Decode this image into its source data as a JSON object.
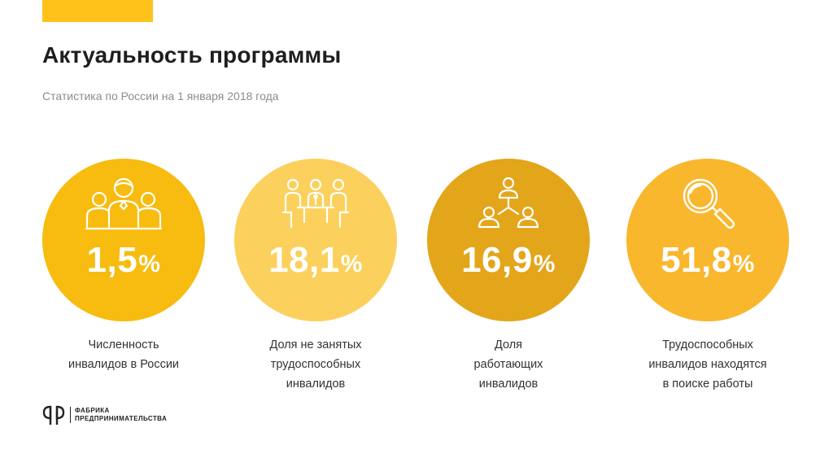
{
  "colors": {
    "accent_bar": "#ffc21a",
    "circle_1": "#f7bc0f",
    "circle_2": "#fbd05c",
    "circle_3": "#e3a51a",
    "circle_4": "#f9b72d"
  },
  "header": {
    "title": "Актуальность программы",
    "subtitle": "Статистика по России на 1 января 2018 года"
  },
  "stats": [
    {
      "icon": "people-group-icon",
      "value": "1,5",
      "unit": "%",
      "label_lines": [
        "Численность",
        "инвалидов в России"
      ]
    },
    {
      "icon": "meeting-table-icon",
      "value": "18,1",
      "unit": "%",
      "label_lines": [
        "Доля не занятых",
        "трудоспособных",
        "инвалидов"
      ]
    },
    {
      "icon": "hierarchy-icon",
      "value": "16,9",
      "unit": "%",
      "label_lines": [
        "Доля",
        "работающих",
        "инвалидов"
      ]
    },
    {
      "icon": "magnifier-icon",
      "value": "51,8",
      "unit": "%",
      "label_lines": [
        "Трудоспособных",
        "инвалидов находятся",
        "в поиске работы"
      ]
    }
  ],
  "footer": {
    "logo_line1": "ФАБРИКА",
    "logo_line2": "ПРЕДПРИНИМАТЕЛЬСТВА"
  }
}
